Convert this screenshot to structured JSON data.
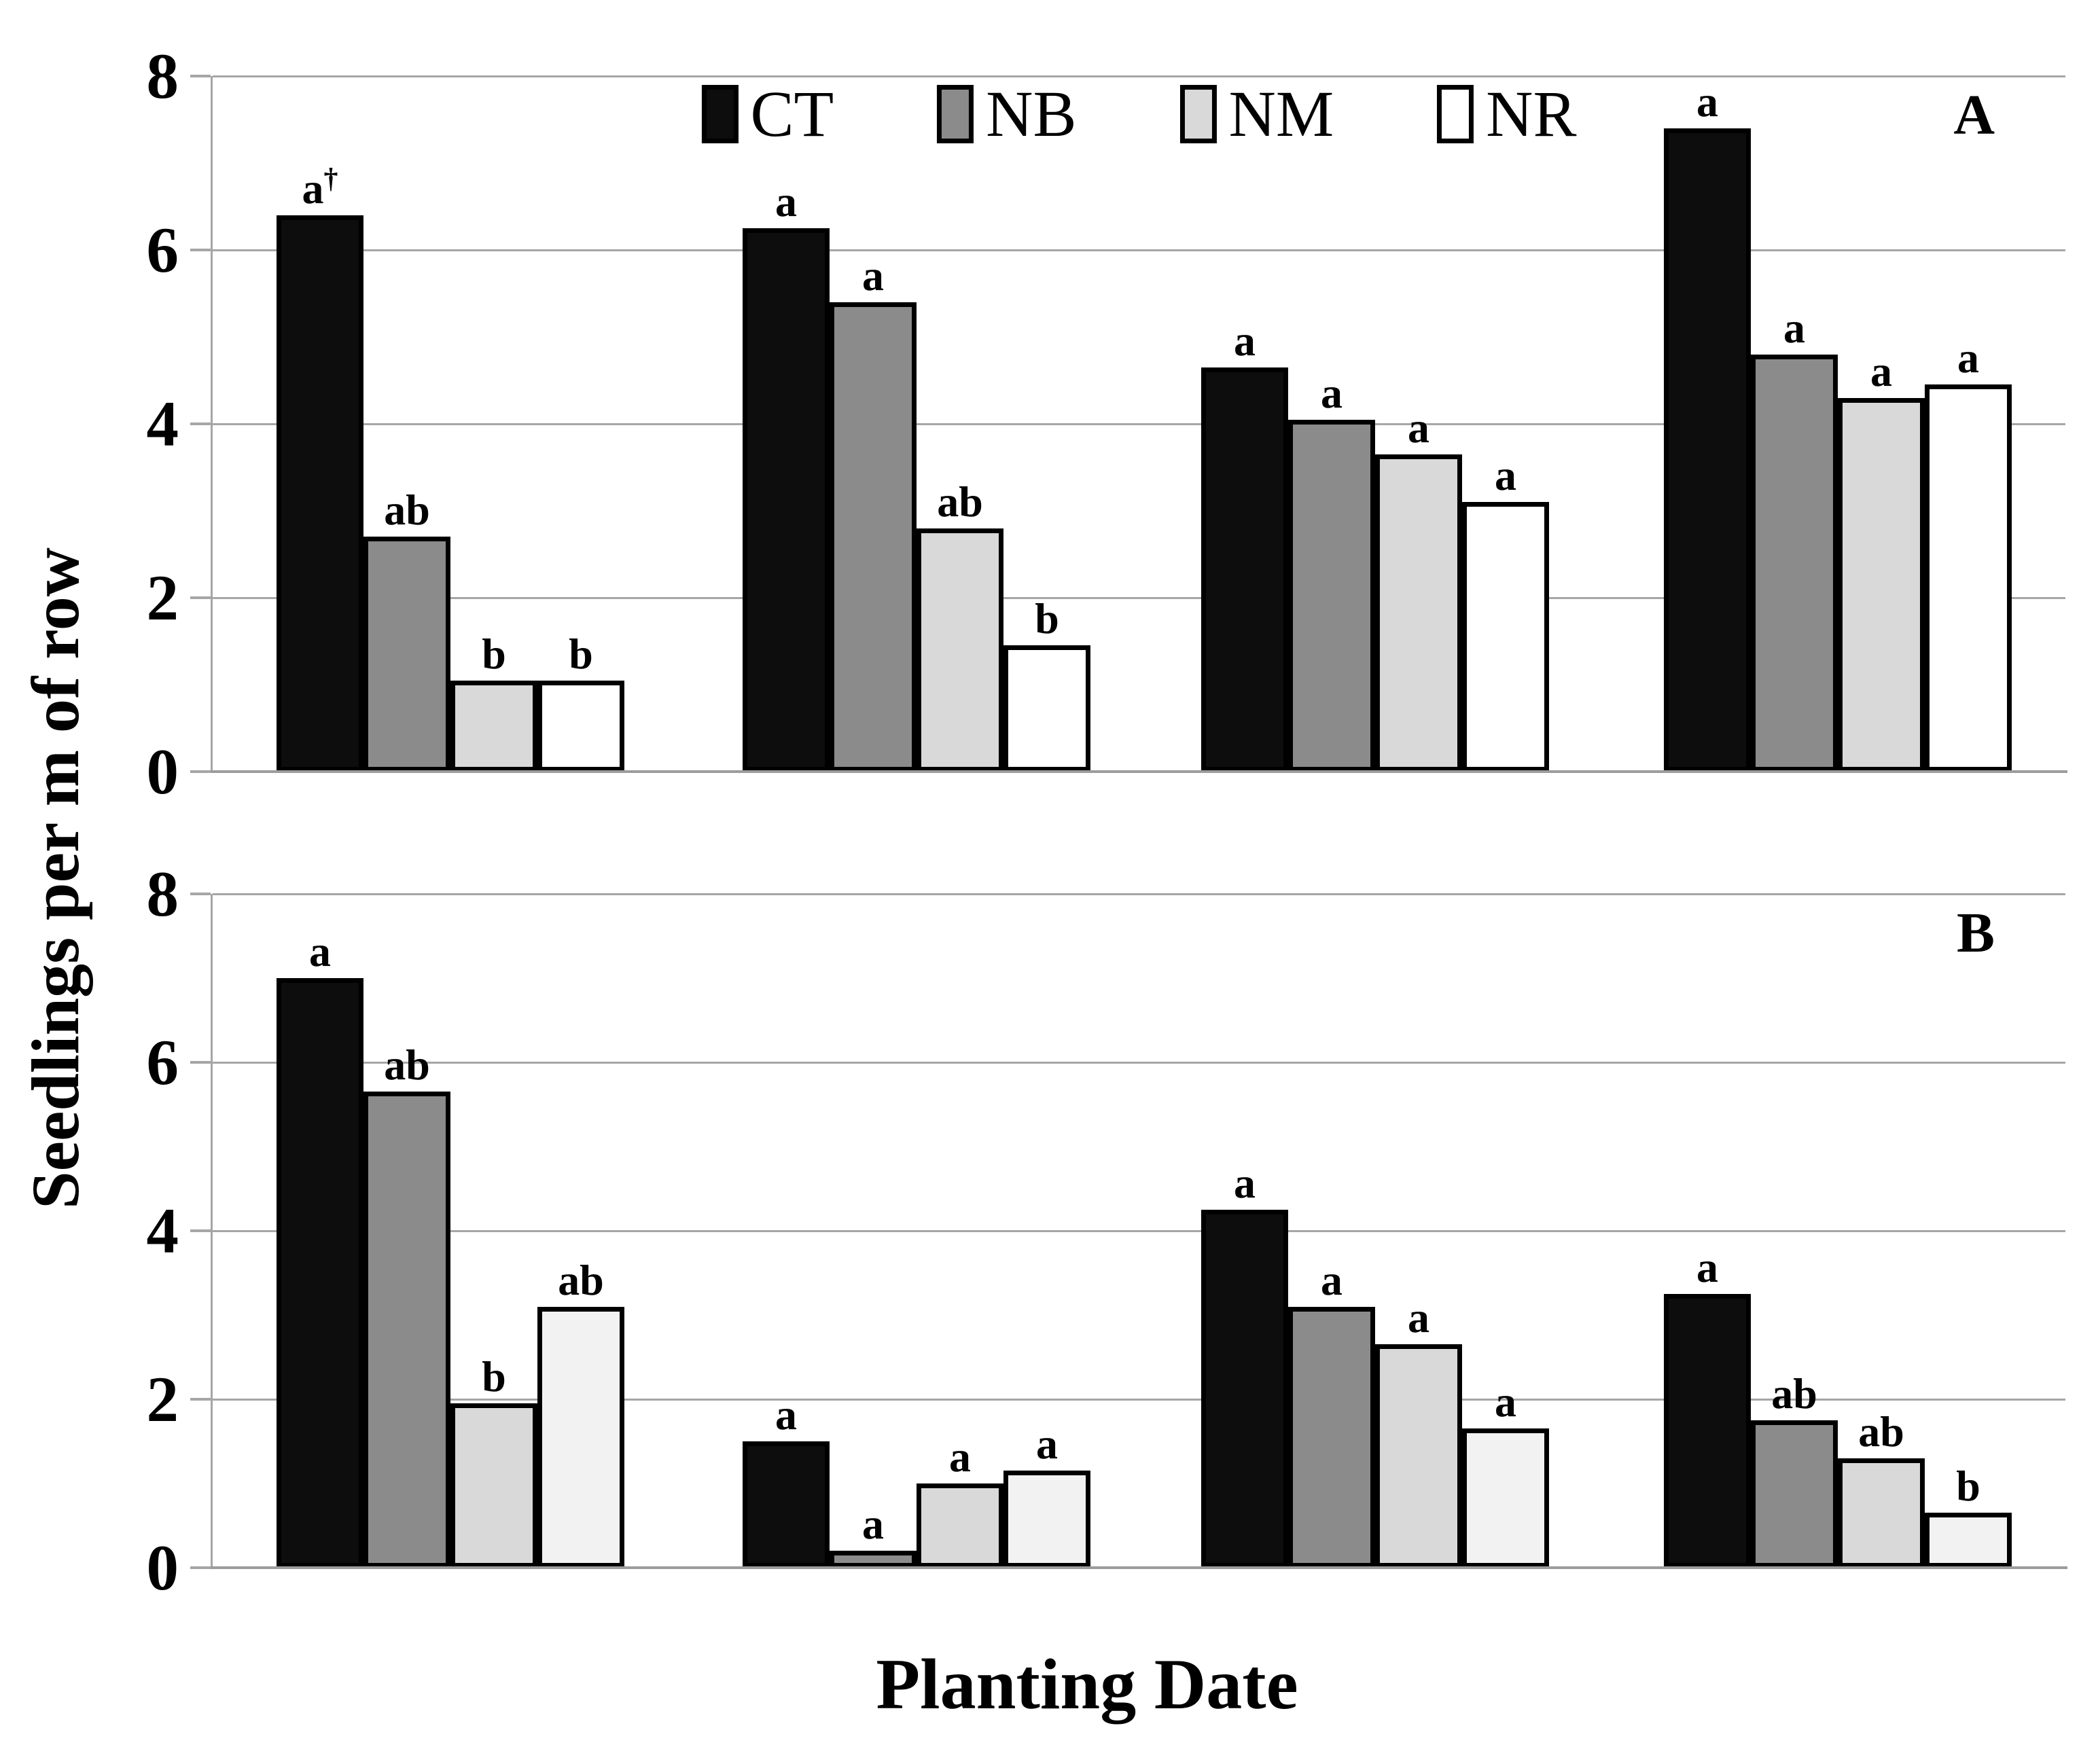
{
  "figure": {
    "y_axis_title": "Seedlings per m of row",
    "x_axis_title": "Planting Date",
    "background_color": "#ffffff",
    "gridline_color": "#a6a6a6",
    "bar_border_color": "#000000",
    "significance_note_symbol": "†",
    "legend": {
      "position": "top-center",
      "items": [
        {
          "label": "CT",
          "color": "#0d0d0d"
        },
        {
          "label": "NB",
          "color": "#8b8b8b"
        },
        {
          "label": "NM",
          "color": "#d9d9d9"
        },
        {
          "label": "NR",
          "color": "#ffffff"
        }
      ]
    }
  },
  "chart_data": [
    {
      "type": "bar",
      "panel_label": "A",
      "title": "",
      "xlabel": "Planting Date",
      "ylabel": "Seedlings per m of row",
      "ylim": [
        0,
        8
      ],
      "yticks": [
        0,
        2,
        4,
        6,
        8
      ],
      "grid": "horizontal",
      "legend_position": "top-center",
      "categories": [
        "",
        "",
        "",
        ""
      ],
      "series": [
        {
          "name": "CT",
          "color": "#0d0d0d",
          "values": [
            6.4,
            6.25,
            4.65,
            7.4
          ],
          "sig_letters": [
            "a†",
            "a",
            "a",
            "a"
          ]
        },
        {
          "name": "NB",
          "color": "#8b8b8b",
          "values": [
            2.7,
            5.4,
            4.05,
            4.8
          ],
          "sig_letters": [
            "ab",
            "a",
            "a",
            "a"
          ]
        },
        {
          "name": "NM",
          "color": "#d9d9d9",
          "values": [
            1.05,
            2.8,
            3.65,
            4.3
          ],
          "sig_letters": [
            "b",
            "ab",
            "a",
            "a"
          ]
        },
        {
          "name": "NR",
          "color": "#ffffff",
          "values": [
            1.05,
            1.45,
            3.1,
            4.45
          ],
          "sig_letters": [
            "b",
            "b",
            "a",
            "a"
          ]
        }
      ]
    },
    {
      "type": "bar",
      "panel_label": "B",
      "title": "",
      "xlabel": "Planting Date",
      "ylabel": "Seedlings per m of row",
      "ylim": [
        0,
        8
      ],
      "yticks": [
        0,
        2,
        4,
        6,
        8
      ],
      "grid": "horizontal",
      "legend_position": "none",
      "categories": [
        "",
        "",
        "",
        ""
      ],
      "series": [
        {
          "name": "CT",
          "color": "#0d0d0d",
          "values": [
            7.0,
            1.5,
            4.25,
            3.25
          ],
          "sig_letters": [
            "a",
            "a",
            "a",
            "a"
          ]
        },
        {
          "name": "NB",
          "color": "#8b8b8b",
          "values": [
            5.65,
            0.2,
            3.1,
            1.75
          ],
          "sig_letters": [
            "ab",
            "a",
            "a",
            "ab"
          ]
        },
        {
          "name": "NM",
          "color": "#d9d9d9",
          "values": [
            1.95,
            1.0,
            2.65,
            1.3
          ],
          "sig_letters": [
            "b",
            "a",
            "a",
            "ab"
          ]
        },
        {
          "name": "NR",
          "color": "#f2f2f2",
          "values": [
            3.1,
            1.15,
            1.65,
            0.65
          ],
          "sig_letters": [
            "ab",
            "a",
            "a",
            "b"
          ]
        }
      ]
    }
  ]
}
